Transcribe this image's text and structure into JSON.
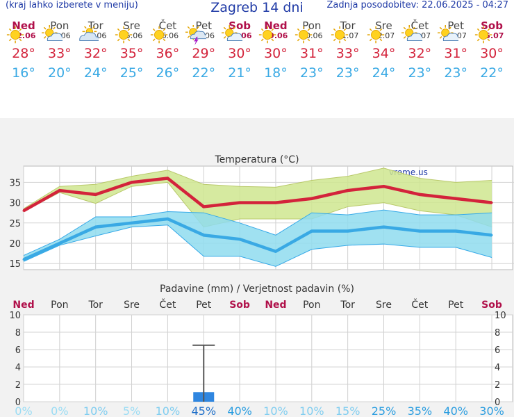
{
  "header": {
    "left": "(kraj lahko izberete v meniju)",
    "title": "Zagreb 14 dni",
    "updated": "Zadnja posodobitev: 22.06.2025 - 04:27"
  },
  "days": [
    {
      "name": "Ned",
      "date": "22.06",
      "weekend": true,
      "icon": "sun-icon",
      "max": "28°",
      "min": "16°"
    },
    {
      "name": "Pon",
      "date": "23.06",
      "weekend": false,
      "icon": "sun-cloud-icon",
      "max": "33°",
      "min": "20°"
    },
    {
      "name": "Tor",
      "date": "24.06",
      "weekend": false,
      "icon": "cloud-sun-icon",
      "max": "32°",
      "min": "24°"
    },
    {
      "name": "Sre",
      "date": "25.06",
      "weekend": false,
      "icon": "sun-icon",
      "max": "35°",
      "min": "25°"
    },
    {
      "name": "Čet",
      "date": "26.06",
      "weekend": false,
      "icon": "sun-icon",
      "max": "36°",
      "min": "26°"
    },
    {
      "name": "Pet",
      "date": "27.06",
      "weekend": false,
      "icon": "storm-icon",
      "max": "29°",
      "min": "22°"
    },
    {
      "name": "Sob",
      "date": "28.06",
      "weekend": true,
      "icon": "sun-cloud-icon",
      "max": "30°",
      "min": "21°"
    },
    {
      "name": "Ned",
      "date": "29.06",
      "weekend": true,
      "icon": "sun-icon",
      "max": "30°",
      "min": "18°"
    },
    {
      "name": "Pon",
      "date": "30.06",
      "weekend": false,
      "icon": "sun-icon",
      "max": "31°",
      "min": "23°"
    },
    {
      "name": "Tor",
      "date": "01.07",
      "weekend": false,
      "icon": "sun-icon",
      "max": "33°",
      "min": "23°"
    },
    {
      "name": "Sre",
      "date": "02.07",
      "weekend": false,
      "icon": "sun-icon",
      "max": "34°",
      "min": "24°"
    },
    {
      "name": "Čet",
      "date": "03.07",
      "weekend": false,
      "icon": "sun-cloud-icon",
      "max": "32°",
      "min": "23°"
    },
    {
      "name": "Pet",
      "date": "04.07",
      "weekend": false,
      "icon": "sun-cloud-icon",
      "max": "31°",
      "min": "23°"
    },
    {
      "name": "Sob",
      "date": "05.07",
      "weekend": true,
      "icon": "sun-icon",
      "max": "30°",
      "min": "22°"
    }
  ],
  "colors": {
    "max": "#d3233b",
    "min": "#39a9e4",
    "weekend": "#b0104a",
    "bar": "#2f86e0",
    "brand": "#1f3aa6"
  },
  "chart_data": [
    {
      "type": "line",
      "title": "Temperatura (°C)",
      "watermark": "vreme.us",
      "ylim": [
        13.5,
        39
      ],
      "yticks": [
        15,
        20,
        25,
        30,
        35
      ],
      "grid": true,
      "series": [
        {
          "values": [
            28,
            33,
            32,
            35,
            36,
            29,
            30,
            30,
            31,
            33,
            34,
            32,
            31,
            30
          ],
          "band_high": [
            28.5,
            34,
            34.5,
            36.5,
            38,
            34.5,
            34,
            33.8,
            35.5,
            36.5,
            38.5,
            36,
            35,
            35.5
          ],
          "band_low": [
            27.8,
            32.5,
            29.8,
            34,
            35,
            24,
            26,
            26,
            26,
            29,
            30,
            28,
            27,
            24
          ]
        },
        {
          "values": [
            16,
            20,
            24,
            25,
            26,
            22,
            21,
            18,
            23,
            23,
            24,
            23,
            23,
            22
          ],
          "band_high": [
            17,
            21,
            26.5,
            26.5,
            27.8,
            27.5,
            25,
            22,
            27.5,
            27,
            28.2,
            27,
            27,
            27.5
          ],
          "band_low": [
            15.5,
            19.5,
            21.8,
            24,
            24.5,
            16.8,
            16.8,
            14.3,
            18.5,
            19.5,
            19.8,
            19,
            19,
            16.5
          ]
        }
      ]
    },
    {
      "type": "bar",
      "title": "Padavine (mm) / Verjetnost padavin (%)",
      "ylim": [
        0,
        10
      ],
      "yticks": [
        0,
        2,
        4,
        6,
        8,
        10
      ],
      "categories": [
        "Ned",
        "Pon",
        "Tor",
        "Sre",
        "Čet",
        "Pet",
        "Sob",
        "Ned",
        "Pon",
        "Tor",
        "Sre",
        "Čet",
        "Pet",
        "Sob"
      ],
      "values": [
        0,
        0,
        0,
        0,
        0,
        1.1,
        0,
        0,
        0,
        0,
        0,
        0,
        0,
        0
      ],
      "error_high": [
        0,
        0,
        0,
        0,
        0,
        6.5,
        0,
        0,
        0,
        0,
        0,
        0,
        0,
        0
      ],
      "probability": [
        "0%",
        "0%",
        "10%",
        "5%",
        "10%",
        "45%",
        "40%",
        "10%",
        "10%",
        "15%",
        "25%",
        "35%",
        "40%",
        "30%"
      ]
    }
  ]
}
